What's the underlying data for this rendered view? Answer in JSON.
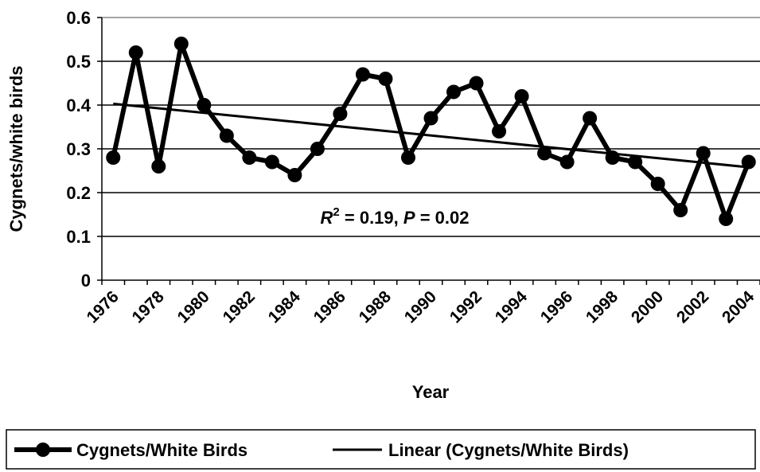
{
  "chart_data": {
    "type": "line",
    "x_label": "Year",
    "y_label": "Cygnets/white birds",
    "annotation": [
      "R",
      "2",
      " = 0.19, ",
      "P",
      " = 0.02"
    ],
    "categories": [
      "1976",
      null,
      "1978",
      null,
      "1980",
      null,
      "1982",
      null,
      "1984",
      null,
      "1986",
      null,
      "1988",
      null,
      "1990",
      null,
      "1992",
      null,
      "1994",
      null,
      "1996",
      null,
      "1998",
      null,
      "2000",
      null,
      "2002",
      null,
      "2004"
    ],
    "series": [
      {
        "name": "Cygnets/White Birds",
        "color": "#000000",
        "values": [
          0.28,
          0.52,
          0.26,
          0.54,
          0.4,
          0.33,
          0.28,
          0.27,
          0.24,
          0.3,
          0.38,
          0.47,
          0.46,
          0.28,
          0.37,
          0.43,
          0.45,
          0.34,
          0.42,
          0.29,
          0.27,
          0.37,
          0.28,
          0.27,
          0.22,
          0.16,
          0.29,
          0.14,
          0.27
        ]
      }
    ],
    "trend": {
      "name": "Linear (Cygnets/White Birds)",
      "color": "#000000",
      "values": [
        0.403,
        0.258
      ]
    },
    "ylim": [
      0,
      0.6
    ],
    "yticks": [
      0,
      0.1,
      0.2,
      0.3,
      0.4,
      0.5,
      0.6
    ],
    "grid": true
  }
}
